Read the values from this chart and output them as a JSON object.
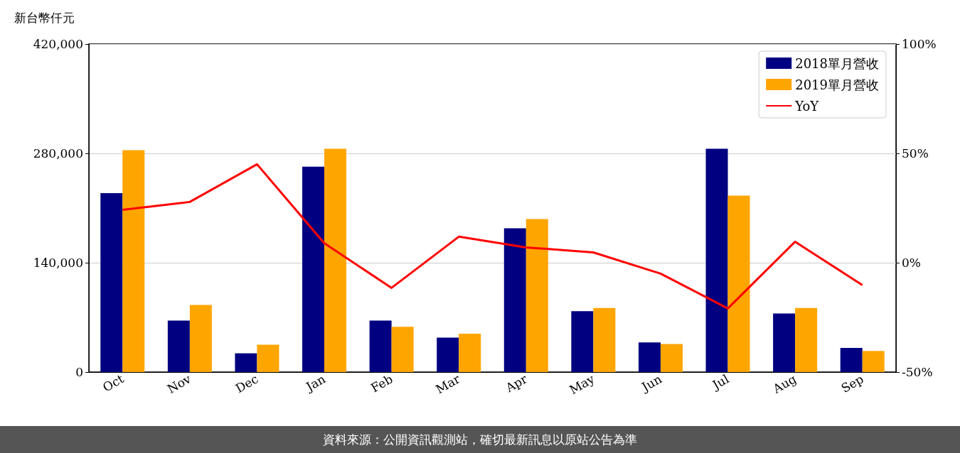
{
  "chart_data": {
    "type": "bar",
    "ylabel": "新台幣仟元",
    "categories": [
      "Oct",
      "Nov",
      "Dec",
      "Jan",
      "Feb",
      "Mar",
      "Apr",
      "May",
      "Jun",
      "Jul",
      "Aug",
      "Sep"
    ],
    "series": [
      {
        "name": "2018單月營收",
        "color": "#000080",
        "values": [
          229000,
          66000,
          24000,
          263000,
          66000,
          44000,
          184000,
          78000,
          38000,
          286000,
          75000,
          31000
        ]
      },
      {
        "name": "2019單月營收",
        "color": "#ffa500",
        "values": [
          284000,
          86000,
          35000,
          286000,
          58000,
          49000,
          196000,
          82000,
          36000,
          226000,
          82000,
          27000
        ]
      },
      {
        "name": "YoY",
        "type": "line",
        "axis": "y2",
        "color": "#ff0000",
        "values": [
          24.2,
          27.8,
          45.0,
          8.9,
          -11.5,
          11.9,
          7.0,
          4.7,
          -5.0,
          -20.9,
          9.6,
          -10.2
        ]
      }
    ],
    "ylim": [
      0,
      420000
    ],
    "yticks": [
      {
        "value": 0,
        "label": "0"
      },
      {
        "value": 140000,
        "label": "140,000"
      },
      {
        "value": 280000,
        "label": "280,000"
      },
      {
        "value": 420000,
        "label": "420,000"
      }
    ],
    "y2lim": [
      -50,
      100
    ],
    "y2ticks": [
      {
        "value": -50,
        "label": "-50%"
      },
      {
        "value": 0,
        "label": "0%"
      },
      {
        "value": 50,
        "label": "50%"
      },
      {
        "value": 100,
        "label": "100%"
      }
    ],
    "grid": "y",
    "legend": "top right",
    "marker": "none",
    "line_style": "solid",
    "annotations": [
      "資料來源：公開資訊觀測站，確切最新訊息以原站公告為準"
    ]
  }
}
